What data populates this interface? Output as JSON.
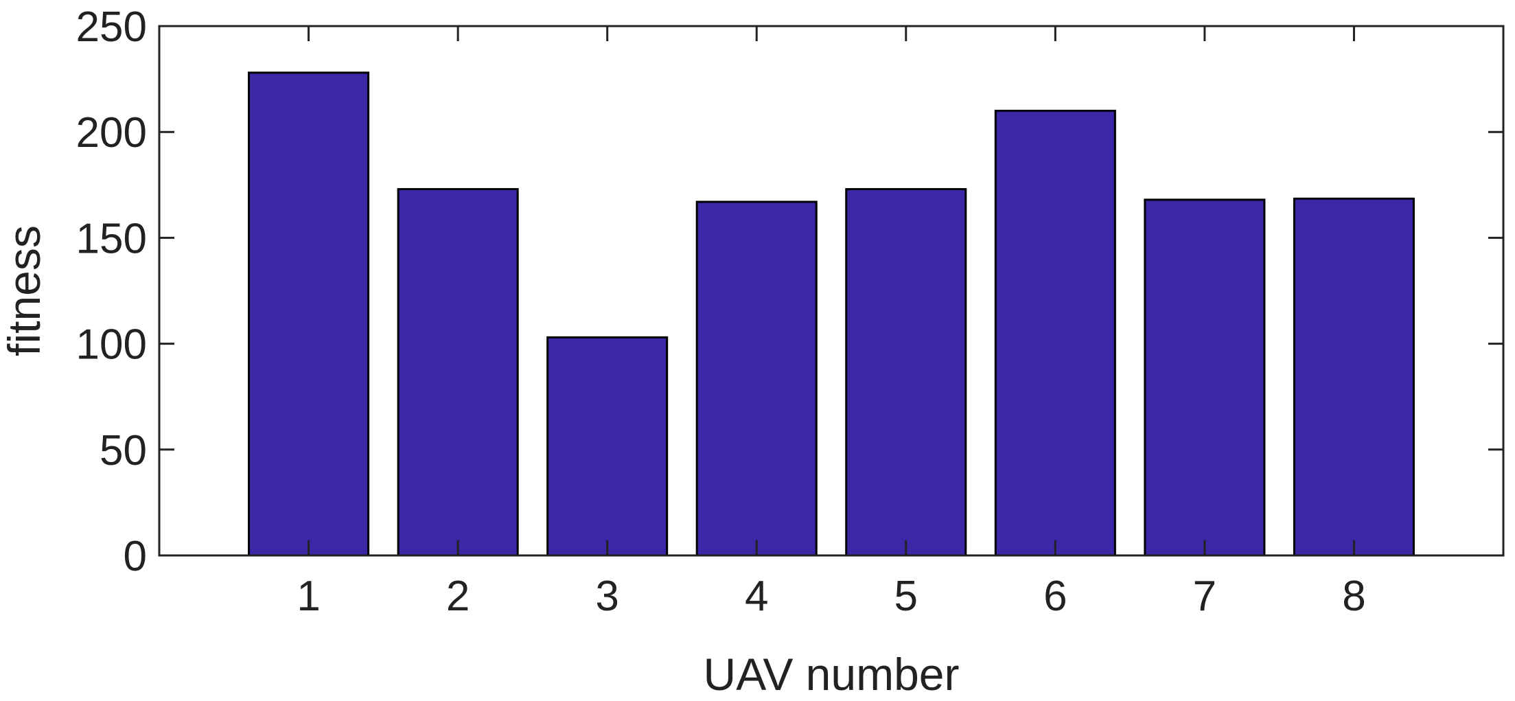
{
  "chart_data": {
    "type": "bar",
    "categories": [
      "1",
      "2",
      "3",
      "4",
      "5",
      "6",
      "7",
      "8"
    ],
    "values": [
      228,
      173,
      103,
      167,
      173,
      210,
      168,
      168.5
    ],
    "title": "",
    "xlabel": "UAV number",
    "ylabel": "fitness",
    "xlim": [
      0,
      9
    ],
    "ylim": [
      0,
      250
    ],
    "yticks": [
      0,
      50,
      100,
      150,
      200,
      250
    ],
    "grid": false,
    "legend": "none",
    "bar_color": "#3b28a6",
    "edge_color": "#000000",
    "axis_color": "#222222"
  }
}
